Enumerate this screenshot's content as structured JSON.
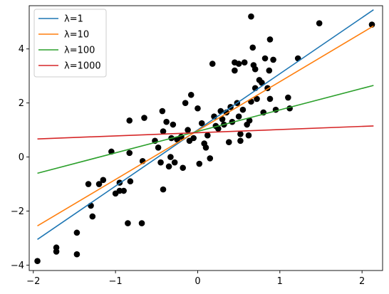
{
  "chart_data": {
    "type": "scatter",
    "title": "",
    "xlabel": "",
    "ylabel": "",
    "xlim": [
      -2.05,
      2.25
    ],
    "ylim": [
      -4.2,
      5.6
    ],
    "xticks": [
      -2,
      -1,
      0,
      1,
      2
    ],
    "yticks": [
      -4,
      -2,
      0,
      2,
      4
    ],
    "grid": false,
    "legend_position": "top-left",
    "points": [
      [
        -1.95,
        -3.85
      ],
      [
        -1.72,
        -3.35
      ],
      [
        -1.72,
        -3.5
      ],
      [
        -1.47,
        -2.8
      ],
      [
        -1.47,
        -3.6
      ],
      [
        -1.33,
        -1.0
      ],
      [
        -1.3,
        -1.8
      ],
      [
        -1.28,
        -2.2
      ],
      [
        -1.2,
        -1.0
      ],
      [
        -1.15,
        -0.85
      ],
      [
        -1.05,
        0.2
      ],
      [
        -1.0,
        -1.35
      ],
      [
        -0.95,
        -1.25
      ],
      [
        -0.95,
        -0.95
      ],
      [
        -0.9,
        -1.25
      ],
      [
        -0.85,
        -2.45
      ],
      [
        -0.83,
        0.15
      ],
      [
        -0.83,
        1.35
      ],
      [
        -0.82,
        -0.9
      ],
      [
        -0.68,
        -2.45
      ],
      [
        -0.67,
        -0.15
      ],
      [
        -0.65,
        1.45
      ],
      [
        -0.52,
        0.6
      ],
      [
        -0.48,
        0.35
      ],
      [
        -0.45,
        -0.2
      ],
      [
        -0.43,
        1.7
      ],
      [
        -0.42,
        0.95
      ],
      [
        -0.42,
        -1.2
      ],
      [
        -0.38,
        1.3
      ],
      [
        -0.35,
        -0.35
      ],
      [
        -0.33,
        0.0
      ],
      [
        -0.32,
        0.7
      ],
      [
        -0.3,
        1.2
      ],
      [
        -0.28,
        -0.2
      ],
      [
        -0.25,
        0.65
      ],
      [
        -0.2,
        0.75
      ],
      [
        -0.18,
        -0.4
      ],
      [
        -0.15,
        2.0
      ],
      [
        -0.12,
        1.0
      ],
      [
        -0.1,
        0.6
      ],
      [
        -0.08,
        2.3
      ],
      [
        -0.05,
        0.7
      ],
      [
        0.0,
        1.8
      ],
      [
        0.02,
        -0.25
      ],
      [
        0.05,
        1.25
      ],
      [
        0.08,
        0.5
      ],
      [
        0.1,
        0.35
      ],
      [
        0.12,
        0.8
      ],
      [
        0.15,
        -0.05
      ],
      [
        0.18,
        3.45
      ],
      [
        0.2,
        1.5
      ],
      [
        0.22,
        1.15
      ],
      [
        0.25,
        1.05
      ],
      [
        0.28,
        1.7
      ],
      [
        0.3,
        1.4
      ],
      [
        0.32,
        1.2
      ],
      [
        0.35,
        1.65
      ],
      [
        0.38,
        0.55
      ],
      [
        0.4,
        1.85
      ],
      [
        0.42,
        1.3
      ],
      [
        0.45,
        3.5
      ],
      [
        0.45,
        3.2
      ],
      [
        0.48,
        2.0
      ],
      [
        0.5,
        3.45
      ],
      [
        0.5,
        1.5
      ],
      [
        0.52,
        0.85
      ],
      [
        0.52,
        0.6
      ],
      [
        0.55,
        1.75
      ],
      [
        0.57,
        3.5
      ],
      [
        0.6,
        1.2
      ],
      [
        0.62,
        0.8
      ],
      [
        0.63,
        1.35
      ],
      [
        0.65,
        5.2
      ],
      [
        0.65,
        2.05
      ],
      [
        0.67,
        4.05
      ],
      [
        0.68,
        3.4
      ],
      [
        0.7,
        2.55
      ],
      [
        0.7,
        3.25
      ],
      [
        0.72,
        2.15
      ],
      [
        0.75,
        2.85
      ],
      [
        0.78,
        2.75
      ],
      [
        0.8,
        1.65
      ],
      [
        0.82,
        3.65
      ],
      [
        0.85,
        2.55
      ],
      [
        0.87,
        3.2
      ],
      [
        0.88,
        2.15
      ],
      [
        0.88,
        4.35
      ],
      [
        0.92,
        3.6
      ],
      [
        0.95,
        1.75
      ],
      [
        1.1,
        2.2
      ],
      [
        1.12,
        1.8
      ],
      [
        1.22,
        3.65
      ],
      [
        1.48,
        4.95
      ],
      [
        2.12,
        4.9
      ]
    ],
    "series": [
      {
        "name": "λ=1",
        "color": "#1f77b4",
        "x": [
          -1.95,
          2.14
        ],
        "y": [
          -3.05,
          5.45
        ]
      },
      {
        "name": "λ=10",
        "color": "#ff7f0e",
        "x": [
          -1.95,
          2.14
        ],
        "y": [
          -2.55,
          4.85
        ]
      },
      {
        "name": "λ=100",
        "color": "#2ca02c",
        "x": [
          -1.95,
          2.14
        ],
        "y": [
          -0.6,
          2.65
        ]
      },
      {
        "name": "λ=1000",
        "color": "#d62728",
        "x": [
          -1.95,
          2.14
        ],
        "y": [
          0.67,
          1.15
        ]
      }
    ],
    "point_color": "#000000"
  }
}
